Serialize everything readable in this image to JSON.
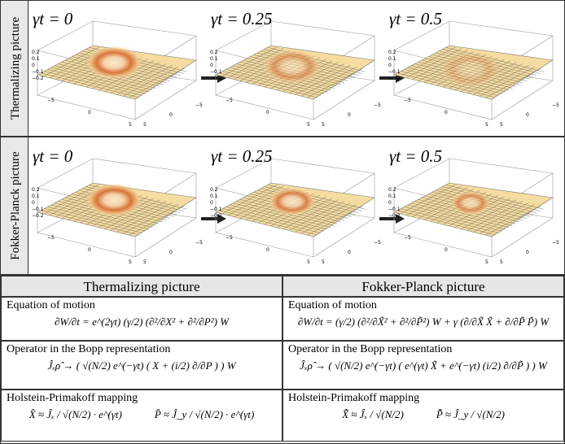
{
  "row_labels": [
    "Thermalizing picture",
    "Fokker-Planck picture"
  ],
  "panels": [
    [
      "γt = 0",
      "γt = 0.25",
      "γt = 0.5"
    ],
    [
      "γt = 0",
      "γt = 0.25",
      "γt = 0.5"
    ]
  ],
  "axis_ticks": {
    "z": [
      "0.2",
      "0.1",
      "0",
      "−0.1",
      "−0.2"
    ],
    "x": [
      "−5",
      "0",
      "5"
    ],
    "y": [
      "5",
      "0",
      "−5"
    ]
  },
  "table": {
    "headers": [
      "Thermalizing picture",
      "Fokker-Planck picture"
    ],
    "rows": [
      [
        {
          "label": "Equation of motion",
          "equations": [
            "∂W/∂t = e^(2γt) (γ/2) (∂²/∂X² + ∂²/∂P²) W"
          ]
        },
        {
          "label": "Equation of motion",
          "equations": [
            "∂W/∂t = (γ/2) (∂²/∂X̃² + ∂²/∂P̃²) W + γ (∂/∂X̃ X̃ + ∂/∂P̃ P̃) W"
          ]
        }
      ],
      [
        {
          "label": "Operator in the Bopp representation",
          "equations": [
            "Ĵₓρ̂ → ( √(N/2) e^(−γt) ( X + (i/2) ∂/∂P ) ) W"
          ]
        },
        {
          "label": "Operator in the Bopp representation",
          "equations": [
            "Ĵₓρ̂ → ( √(N/2) e^(−γt) ( e^(γt) X̃ + e^(−γt) (i/2) ∂/∂P̃ ) ) W"
          ]
        }
      ],
      [
        {
          "label": "Holstein-Primakoff mapping",
          "equations": [
            "X̂ ≈ Ĵₓ / √(N/2) · e^(γt)",
            "P̂ ≈ Ĵ_y / √(N/2) · e^(γt)"
          ]
        },
        {
          "label": "Holstein-Primakoff mapping",
          "equations": [
            "X̃̂ ≈ Ĵₓ / √(N/2)",
            "P̃̂ ≈ Ĵ_y / √(N/2)"
          ]
        }
      ]
    ]
  }
}
